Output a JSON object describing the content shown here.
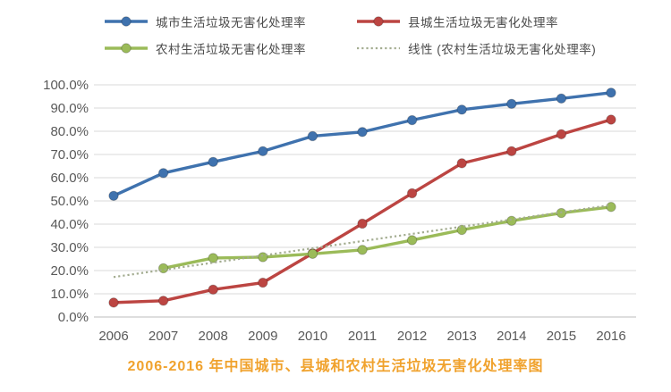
{
  "chart_data": {
    "type": "line",
    "title": "2006-2016 年中国城市、县城和农村生活垃圾无害化处理率图",
    "title_color": "#f0a22d",
    "categories": [
      "2006",
      "2007",
      "2008",
      "2009",
      "2010",
      "2011",
      "2012",
      "2013",
      "2014",
      "2015",
      "2016"
    ],
    "xlabel": "",
    "ylabel": "",
    "ylim": [
      0,
      100
    ],
    "y_tick_step": 10,
    "y_tick_labels": [
      "0.0%",
      "10.0%",
      "20.0%",
      "30.0%",
      "40.0%",
      "50.0%",
      "60.0%",
      "70.0%",
      "80.0%",
      "90.0%",
      "100.0%"
    ],
    "grid": true,
    "legend_position": "top",
    "axis_text_color": "#595959",
    "gridline_color": "#d9d9d9",
    "axisline_color": "#bdbdbd",
    "series": [
      {
        "name": "城市生活垃圾无害化处理率",
        "color": "#3f72ae",
        "style": "solid",
        "marker": true,
        "values": [
          52.2,
          62.0,
          66.8,
          71.4,
          77.9,
          79.7,
          84.8,
          89.3,
          91.8,
          94.1,
          96.6
        ]
      },
      {
        "name": "县城生活垃圾无害化处理率",
        "color": "#bc4542",
        "style": "solid",
        "marker": true,
        "values": [
          6.2,
          7.0,
          11.8,
          14.8,
          27.4,
          40.2,
          53.3,
          66.2,
          71.4,
          78.7,
          85.0
        ]
      },
      {
        "name": "农村生活垃圾无害化处理率",
        "color": "#9bbb59",
        "style": "solid",
        "marker": true,
        "values": [
          null,
          21.0,
          25.4,
          25.8,
          27.2,
          28.9,
          33.1,
          37.5,
          41.4,
          44.8,
          47.4
        ]
      },
      {
        "name": "线性 (农村生活垃圾无害化处理率)",
        "color": "#a3ac90",
        "style": "dotted",
        "marker": false,
        "values": [
          17.2,
          20.3,
          23.4,
          26.5,
          29.6,
          32.7,
          35.8,
          38.9,
          42.0,
          45.1,
          48.2
        ]
      }
    ]
  }
}
